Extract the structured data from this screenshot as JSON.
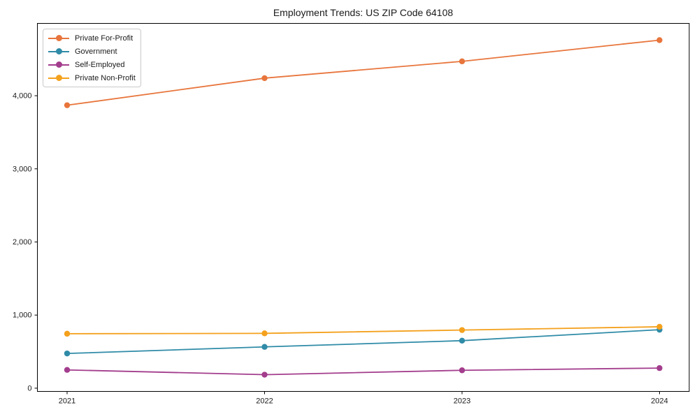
{
  "chart_data": {
    "type": "line",
    "title": "Employment Trends: US ZIP Code 64108",
    "categories": [
      "2021",
      "2022",
      "2023",
      "2024"
    ],
    "series": [
      {
        "name": "Private For-Profit",
        "color": "#E8753C",
        "values": [
          3870,
          4240,
          4470,
          4760
        ]
      },
      {
        "name": "Government",
        "color": "#2F8BA7",
        "values": [
          475,
          565,
          650,
          800
        ]
      },
      {
        "name": "Self-Employed",
        "color": "#A33D8D",
        "values": [
          250,
          185,
          245,
          275
        ]
      },
      {
        "name": "Private Non-Profit",
        "color": "#F4A11D",
        "values": [
          745,
          750,
          795,
          840
        ]
      }
    ],
    "xlabel": "",
    "ylabel": "",
    "ylim": [
      -44,
      4989
    ],
    "yticks": [
      0,
      1000,
      2000,
      3000,
      4000
    ],
    "ytick_labels": [
      "0",
      "1,000",
      "2,000",
      "3,000",
      "4,000"
    ],
    "legend_position": "upper-left",
    "grid": false,
    "axis_color": "#000000",
    "tick_text_color": "#1a1a1a"
  }
}
